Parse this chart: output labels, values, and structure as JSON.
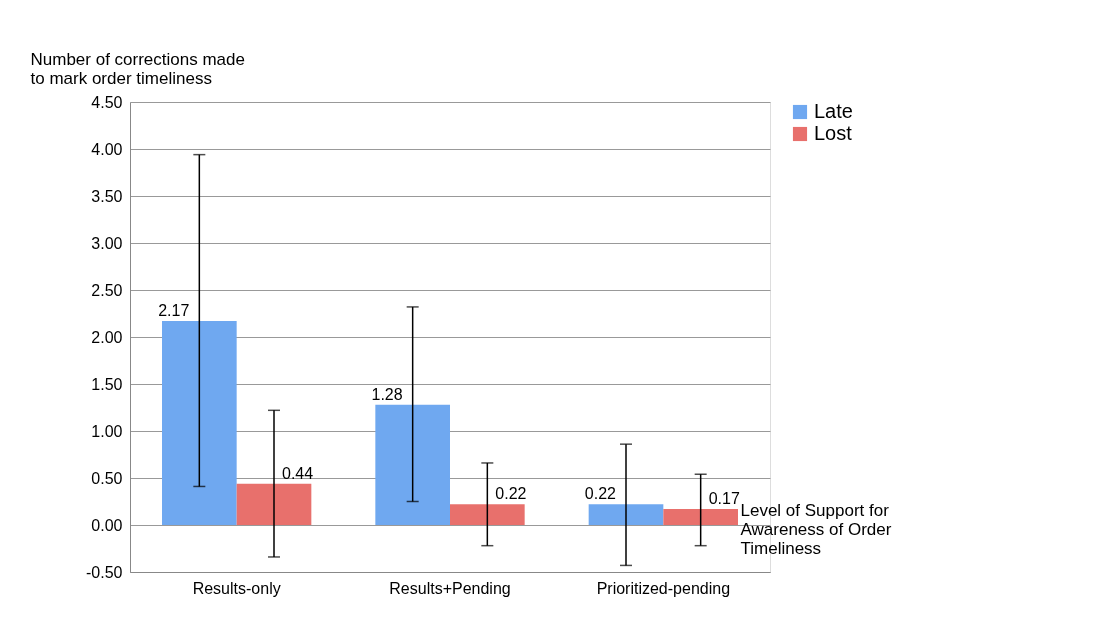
{
  "chart_data": {
    "type": "bar",
    "ylabel": "Number of corrections made\nto mark order timeliness",
    "xlabel": "Level of Support for\nAwareness of Order\nTimeliness",
    "categories": [
      "Results-only",
      "Results+Pending",
      "Prioritized-pending"
    ],
    "series": [
      {
        "name": "Late",
        "color": "#6fa8f0",
        "values": [
          2.17,
          1.28,
          0.22
        ],
        "errors": [
          [
            0.41,
            3.94
          ],
          [
            0.25,
            2.32
          ],
          [
            -0.43,
            0.86
          ]
        ]
      },
      {
        "name": "Lost",
        "color": "#e8706c",
        "values": [
          0.44,
          0.22,
          0.17
        ],
        "errors": [
          [
            -0.34,
            1.22
          ],
          [
            -0.22,
            0.66
          ],
          [
            -0.22,
            0.54
          ]
        ]
      }
    ],
    "ylim": [
      -0.5,
      4.5
    ],
    "yticks": [
      {
        "value": -0.5,
        "label": "-0.50"
      },
      {
        "value": 0,
        "label": "0.00"
      },
      {
        "value": 0.5,
        "label": "0.50"
      },
      {
        "value": 1,
        "label": "1.00"
      },
      {
        "value": 1.5,
        "label": "1.50"
      },
      {
        "value": 2,
        "label": "2.00"
      },
      {
        "value": 2.5,
        "label": "2.50"
      },
      {
        "value": 3,
        "label": "3.00"
      },
      {
        "value": 3.5,
        "label": "3.50"
      },
      {
        "value": 4,
        "label": "4.00"
      },
      {
        "value": 4.5,
        "label": "4.50"
      }
    ],
    "grid": "y",
    "legend": "right",
    "data_labels": true
  }
}
